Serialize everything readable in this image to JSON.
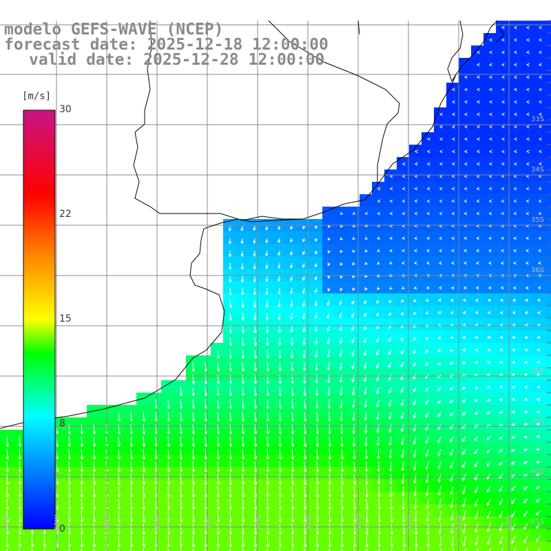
{
  "title": {
    "model": "modelo GEFS-WAVE (NCEP)",
    "forecast": "forecast date: 2025-12-18 12:00:00",
    "valid": "valid date: 2025-12-28 12:00:00"
  },
  "colorbar": {
    "unit": "[m/s]",
    "ticks": [
      "30",
      "22",
      "15",
      "8",
      "0"
    ],
    "min": 0,
    "max": 30,
    "stops": [
      "#0000ff",
      "#00ffff",
      "#00ff00",
      "#ffff00",
      "#ff7f00",
      "#ff0000",
      "#c71585"
    ]
  },
  "grid": {
    "lat_labels": [
      "33S",
      "34S",
      "35S",
      "36S",
      "38S",
      "39S",
      "40S",
      "41S"
    ],
    "lon_labels": [
      "60W",
      "59W",
      "58W",
      "57W",
      "56W",
      "55W",
      "54W",
      "53W",
      "52W",
      "51W",
      "50W"
    ]
  },
  "colors": {
    "land": "#ffffff",
    "coast": "#000000",
    "grid": "#888888",
    "arrows": "#ffffff",
    "title": "#8a8a8a"
  }
}
